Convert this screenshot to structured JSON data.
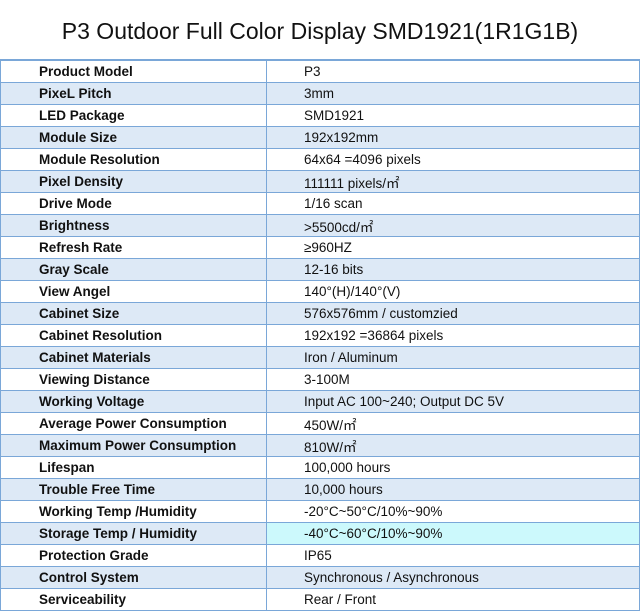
{
  "title": "P3 Outdoor Full Color Display SMD1921(1R1G1B)",
  "colors": {
    "row_alt": "#dde9f6",
    "border": "#7aa7d8",
    "highlight": "#ccf9fc"
  },
  "rows": [
    {
      "label": "Product Model",
      "value": "P3"
    },
    {
      "label": "PixeL Pitch",
      "value": "3mm"
    },
    {
      "label": "LED Package",
      "value": "SMD1921"
    },
    {
      "label": "Module Size",
      "value": "192x192mm"
    },
    {
      "label": "Module Resolution",
      "value": "64x64 =4096 pixels"
    },
    {
      "label": "Pixel Density",
      "value": "111111 pixels/㎡"
    },
    {
      "label": "Drive Mode",
      "value": "1/16 scan"
    },
    {
      "label": "Brightness",
      "value": ">5500cd/㎡"
    },
    {
      "label": "Refresh Rate",
      "value": "≥960HZ"
    },
    {
      "label": "Gray Scale",
      "value": "12-16 bits"
    },
    {
      "label": "View Angel",
      "value": "140°(H)/140°(V)"
    },
    {
      "label": "Cabinet Size",
      "value": "576x576mm / customzied"
    },
    {
      "label": "Cabinet Resolution",
      "value": "192x192 =36864 pixels"
    },
    {
      "label": "Cabinet Materials",
      "value": "Iron / Aluminum"
    },
    {
      "label": "Viewing Distance",
      "value": "3-100M"
    },
    {
      "label": "Working Voltage",
      "value": "Input AC 100~240; Output DC 5V"
    },
    {
      "label": "Average Power Consumption",
      "value": "450W/㎡"
    },
    {
      "label": "Maximum Power Consumption",
      "value": "810W/㎡"
    },
    {
      "label": "Lifespan",
      "value": "100,000 hours"
    },
    {
      "label": "Trouble Free Time",
      "value": "10,000 hours"
    },
    {
      "label": "Working Temp /Humidity",
      "value": "-20°C~50°C/10%~90%"
    },
    {
      "label": "Storage Temp / Humidity",
      "value": "-40°C~60°C/10%~90%"
    },
    {
      "label": "Protection Grade",
      "value": "IP65"
    },
    {
      "label": "Control System",
      "value": "Synchronous / Asynchronous"
    },
    {
      "label": "Serviceability",
      "value": "Rear / Front"
    }
  ]
}
